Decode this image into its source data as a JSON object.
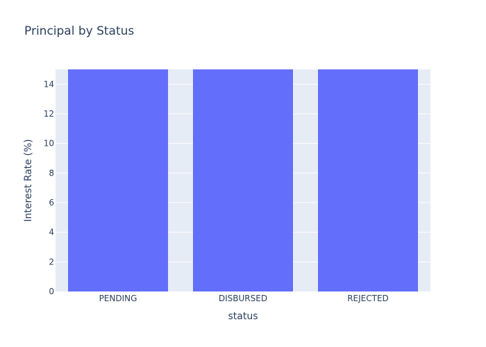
{
  "chart_data": {
    "type": "bar",
    "title": "Principal by Status",
    "xlabel": "status",
    "ylabel": "Interest Rate (%)",
    "categories": [
      "PENDING",
      "DISBURSED",
      "REJECTED"
    ],
    "values": [
      15,
      15,
      15
    ],
    "ylim": [
      0,
      15
    ],
    "yticks": [
      0,
      2,
      4,
      6,
      8,
      10,
      12,
      14
    ],
    "grid": true,
    "legend": "none",
    "colors": {
      "bar": "#636efa",
      "plot_bg": "#e5ecf6",
      "grid": "#ffffff",
      "text": "#2a3f5f"
    }
  }
}
